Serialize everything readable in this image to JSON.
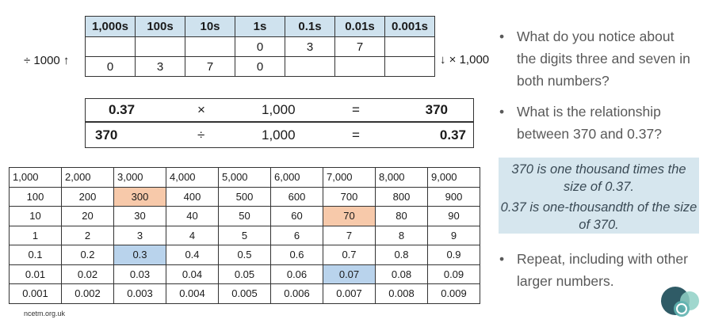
{
  "place_value": {
    "headers": [
      "1,000s",
      "100s",
      "10s",
      "1s",
      "0.1s",
      "0.01s",
      "0.001s"
    ],
    "rows": [
      [
        "",
        "",
        "",
        "0",
        "3",
        "7",
        ""
      ],
      [
        "0",
        "3",
        "7",
        "0",
        "",
        "",
        ""
      ]
    ],
    "left_label": "÷ 1000 ↑",
    "right_label": "↓ × 1,000"
  },
  "equations": [
    {
      "a": "0.37",
      "op": "×",
      "b": "1,000",
      "eq": "=",
      "result": "370"
    },
    {
      "a": "370",
      "op": "÷",
      "b": "1,000",
      "eq": "=",
      "result": "0.37"
    }
  ],
  "bullets": [
    "What do you notice about the digits three and seven in both numbers?",
    "What is the relationship between 370 and 0.37?",
    "Repeat, including with other larger numbers."
  ],
  "bullet_symbol": "•",
  "answer": [
    "370 is one thousand times the size of 0.37.",
    "0.37 is one-thousandth of the size of 370."
  ],
  "grid": [
    [
      "1,000",
      "2,000",
      "3,000",
      "4,000",
      "5,000",
      "6,000",
      "7,000",
      "8,000",
      "9,000"
    ],
    [
      "100",
      "200",
      "300",
      "400",
      "500",
      "600",
      "700",
      "800",
      "900"
    ],
    [
      "10",
      "20",
      "30",
      "40",
      "50",
      "60",
      "70",
      "80",
      "90"
    ],
    [
      "1",
      "2",
      "3",
      "4",
      "5",
      "6",
      "7",
      "8",
      "9"
    ],
    [
      "0.1",
      "0.2",
      "0.3",
      "0.4",
      "0.5",
      "0.6",
      "0.7",
      "0.8",
      "0.9"
    ],
    [
      "0.01",
      "0.02",
      "0.03",
      "0.04",
      "0.05",
      "0.06",
      "0.07",
      "0.08",
      "0.09"
    ],
    [
      "0.001",
      "0.002",
      "0.003",
      "0.004",
      "0.005",
      "0.006",
      "0.007",
      "0.008",
      "0.009"
    ]
  ],
  "highlights": [
    {
      "value": "300",
      "color": "#f7c9aa"
    },
    {
      "value": "70",
      "color": "#f7c9aa"
    },
    {
      "value": "0.3",
      "color": "#b9d3ec"
    },
    {
      "value": "0.07",
      "color": "#b9d3ec"
    }
  ],
  "footer": "ncetm.org.uk",
  "logo_icon": "ncetm-logo-icon"
}
